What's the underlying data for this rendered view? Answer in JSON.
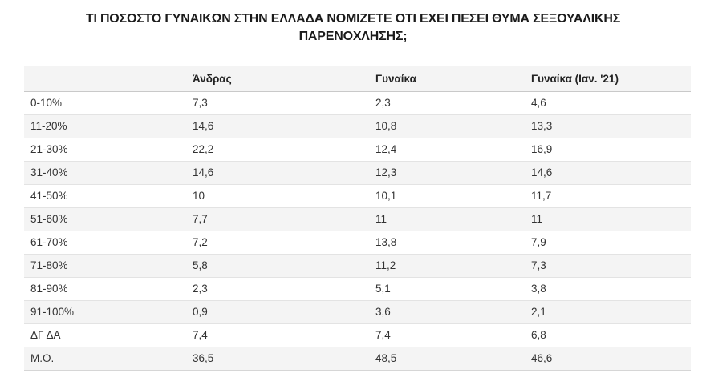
{
  "title": "ΤΙ ΠΟΣΟΣΤΟ ΓΥΝΑΙΚΩΝ ΣΤΗΝ ΕΛΛΑΔΑ ΝΟΜΙΖΕΤΕ ΟΤΙ ΕΧΕΙ ΠΕΣΕΙ ΘΥΜΑ ΣΕΞΟΥΑΛΙΚΗΣ ΠΑΡΕΝΟΧΛΗΣΗΣ;",
  "colors": {
    "header_bg": "#f4f4f4",
    "stripe_bg": "#f4f4f4",
    "row_border": "#e3e3e3",
    "header_border": "#c9c9c9",
    "title_text": "#1a1a1a",
    "body_text": "#333333",
    "page_bg": "#ffffff"
  },
  "chart_data": {
    "type": "table",
    "title": "ΤΙ ΠΟΣΟΣΤΟ ΓΥΝΑΙΚΩΝ ΣΤΗΝ ΕΛΛΑΔΑ ΝΟΜΙΖΕΤΕ ΟΤΙ ΕΧΕΙ ΠΕΣΕΙ ΘΥΜΑ ΣΕΞΟΥΑΛΙΚΗΣ ΠΑΡΕΝΟΧΛΗΣΗΣ;",
    "columns": [
      "",
      "Άνδρας",
      "Γυναίκα",
      "Γυναίκα (Ιαν. '21)"
    ],
    "decimal_separator": ",",
    "rows": [
      {
        "label": "0-10%",
        "values": [
          "7,3",
          "2,3",
          "4,6"
        ]
      },
      {
        "label": "11-20%",
        "values": [
          "14,6",
          "10,8",
          "13,3"
        ]
      },
      {
        "label": "21-30%",
        "values": [
          "22,2",
          "12,4",
          "16,9"
        ]
      },
      {
        "label": "31-40%",
        "values": [
          "14,6",
          "12,3",
          "14,6"
        ]
      },
      {
        "label": "41-50%",
        "values": [
          "10",
          "10,1",
          "11,7"
        ]
      },
      {
        "label": "51-60%",
        "values": [
          "7,7",
          "11",
          "11"
        ]
      },
      {
        "label": "61-70%",
        "values": [
          "7,2",
          "13,8",
          "7,9"
        ]
      },
      {
        "label": "71-80%",
        "values": [
          "5,8",
          "11,2",
          "7,3"
        ]
      },
      {
        "label": "81-90%",
        "values": [
          "2,3",
          "5,1",
          "3,8"
        ]
      },
      {
        "label": "91-100%",
        "values": [
          "0,9",
          "3,6",
          "2,1"
        ]
      },
      {
        "label": "ΔΓ ΔΑ",
        "values": [
          "7,4",
          "7,4",
          "6,8"
        ]
      },
      {
        "label": "Μ.Ο.",
        "values": [
          "36,5",
          "48,5",
          "46,6"
        ]
      }
    ]
  }
}
